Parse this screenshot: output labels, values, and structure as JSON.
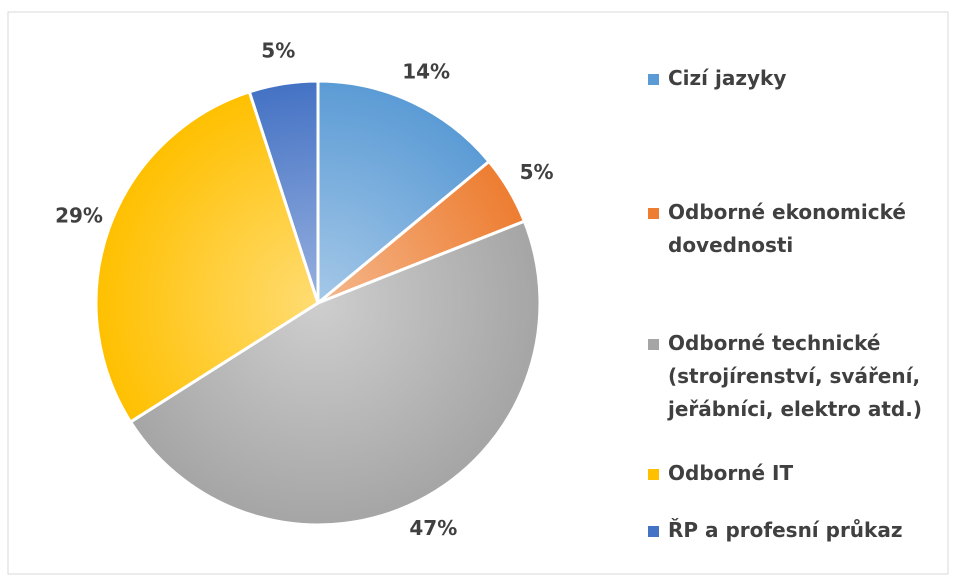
{
  "chart_data": {
    "type": "pie",
    "categories": [
      "Cizí jazyky",
      "Odborné ekonomické dovednosti",
      "Odborné technické (strojírenství, sváření, jeřábníci, elektro atd.)",
      "Odborné IT",
      "ŘP a profesní průkaz"
    ],
    "values": [
      14,
      5,
      47,
      29,
      5
    ],
    "value_labels": [
      "14%",
      "5%",
      "47%",
      "29%",
      "5%"
    ],
    "colors": [
      "#5b9bd5",
      "#ed7d31",
      "#a5a5a5",
      "#ffc000",
      "#4472c4"
    ],
    "legend": "right"
  }
}
